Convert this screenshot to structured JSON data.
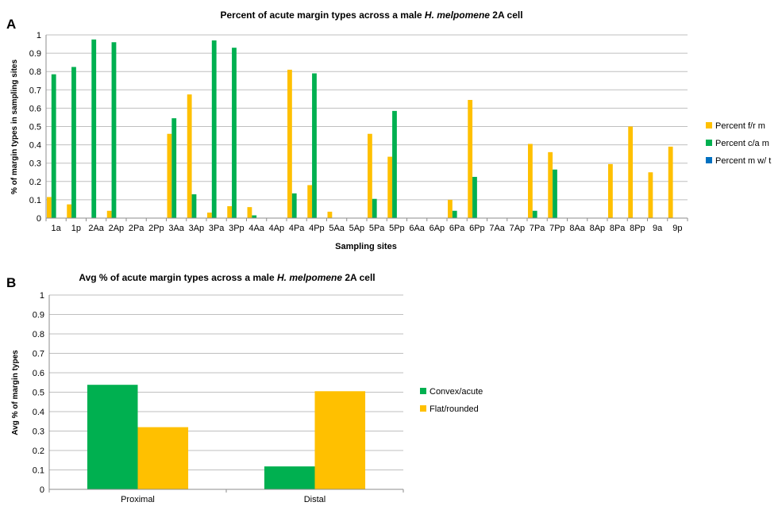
{
  "panels": {
    "a": {
      "letter": "A",
      "title_pre": "Percent of acute margin types across a male ",
      "title_em": "H. melpomene",
      "title_post": " 2A cell"
    },
    "b": {
      "letter": "B",
      "title_pre": "Avg % of acute margin types across a male ",
      "title_em": "H. melpomene",
      "title_post": " 2A cell"
    }
  },
  "colors": {
    "yellow": "#FFC000",
    "green": "#00B050",
    "blue": "#0070C0",
    "grid": "#bfbfbf",
    "axis": "#8c8c8c"
  },
  "chart_data": [
    {
      "type": "bar",
      "title": "Percent of acute margin types across a male H. melpomene 2A cell",
      "xlabel": "Sampling sites",
      "ylabel": "% of margin types in sampling sites",
      "ylim": [
        0,
        1
      ],
      "yticks": [
        "0",
        "0.1",
        "0.2",
        "0.3",
        "0.4",
        "0.5",
        "0.6",
        "0.7",
        "0.8",
        "0.9",
        "1"
      ],
      "grid": true,
      "legend_position": "right",
      "categories": [
        "1a",
        "1p",
        "2Aa",
        "2Ap",
        "2Pa",
        "2Pp",
        "3Aa",
        "3Ap",
        "3Pa",
        "3Pp",
        "4Aa",
        "4Ap",
        "4Pa",
        "4Pp",
        "5Aa",
        "5Ap",
        "5Pa",
        "5Pp",
        "6Aa",
        "6Ap",
        "6Pa",
        "6Pp",
        "7Aa",
        "7Ap",
        "7Pa",
        "7Pp",
        "8Aa",
        "8Ap",
        "8Pa",
        "8Pp",
        "9a",
        "9p"
      ],
      "series": [
        {
          "name": "Percent f/r m",
          "color": "#FFC000",
          "values": [
            0.115,
            0.075,
            0,
            0.04,
            0,
            0,
            0.46,
            0.675,
            0.03,
            0.065,
            0.06,
            0,
            0.81,
            0.18,
            0.035,
            0,
            0.46,
            0.335,
            0,
            0,
            0.1,
            0.645,
            0,
            0,
            0.405,
            0.36,
            0,
            0,
            0.295,
            0.5,
            0.25,
            0.39
          ]
        },
        {
          "name": "Percent c/a m",
          "color": "#00B050",
          "values": [
            0.785,
            0.825,
            0.975,
            0.96,
            0,
            0,
            0.545,
            0.13,
            0.97,
            0.93,
            0.015,
            0,
            0.135,
            0.79,
            0,
            0,
            0.105,
            0.585,
            0,
            0,
            0.04,
            0.225,
            0,
            0,
            0.04,
            0.265,
            0,
            0,
            0,
            0,
            0,
            0
          ]
        },
        {
          "name": "Percent m w/ t",
          "color": "#0070C0",
          "values": [
            0,
            0,
            0,
            0,
            0,
            0,
            0,
            0,
            0,
            0,
            0,
            0,
            0,
            0,
            0,
            0,
            0,
            0,
            0,
            0,
            0,
            0,
            0,
            0,
            0,
            0,
            0,
            0,
            0,
            0,
            0,
            0
          ]
        }
      ]
    },
    {
      "type": "bar",
      "title": "Avg % of acute margin types across a male H. melpomene 2A cell",
      "xlabel": "",
      "ylabel": "Avg % of margin types",
      "ylim": [
        0,
        1
      ],
      "yticks": [
        "0",
        "0.1",
        "0.2",
        "0.3",
        "0.4",
        "0.5",
        "0.6",
        "0.7",
        "0.8",
        "0.9",
        "1"
      ],
      "grid": true,
      "legend_position": "right",
      "categories": [
        "Proximal",
        "Distal"
      ],
      "series": [
        {
          "name": "Convex/acute",
          "color": "#00B050",
          "values": [
            0.538,
            0.118
          ]
        },
        {
          "name": "Flat/rounded",
          "color": "#FFC000",
          "values": [
            0.32,
            0.505
          ]
        }
      ]
    }
  ]
}
